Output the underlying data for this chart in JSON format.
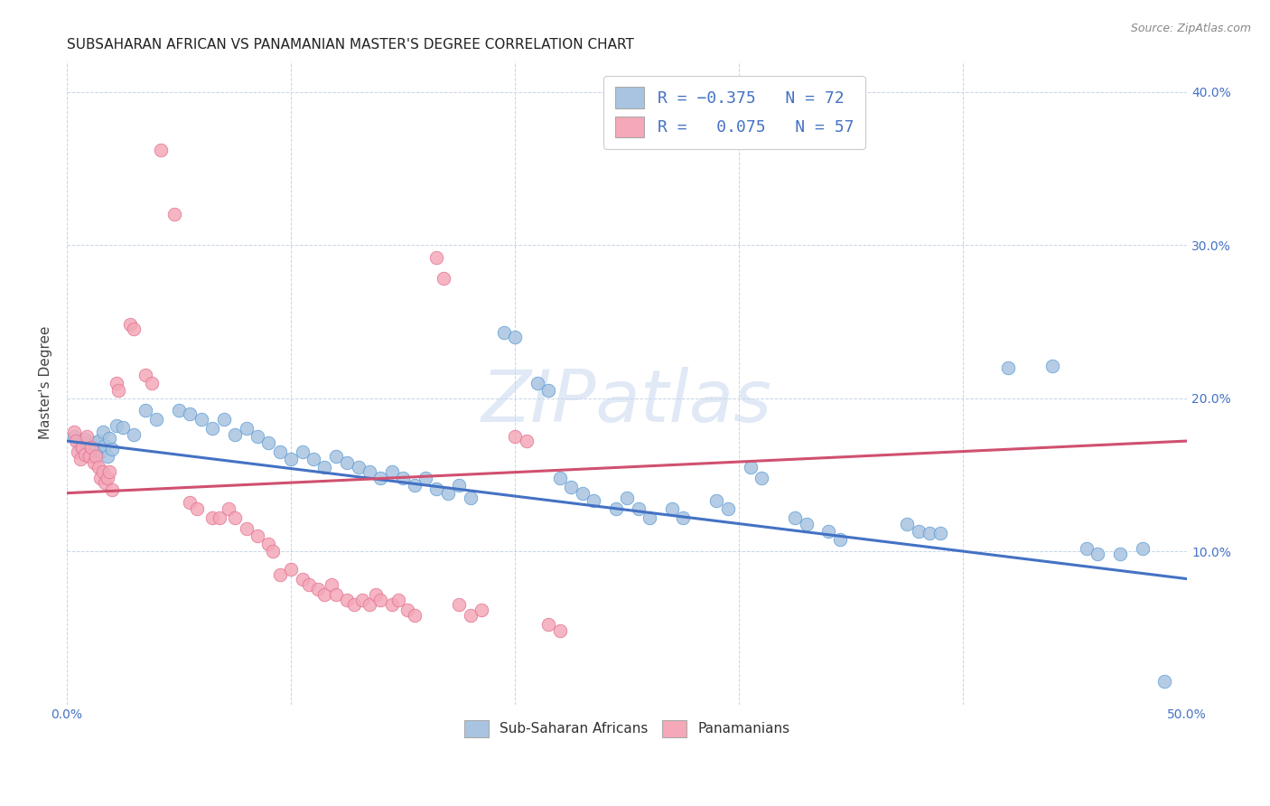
{
  "title": "SUBSAHARAN AFRICAN VS PANAMANIAN MASTER'S DEGREE CORRELATION CHART",
  "source": "Source: ZipAtlas.com",
  "ylabel": "Master's Degree",
  "xlim": [
    0.0,
    0.5
  ],
  "ylim": [
    0.0,
    0.42
  ],
  "blue_color": "#a8c4e0",
  "pink_color": "#f4a8b8",
  "blue_edge_color": "#5b9bd5",
  "pink_edge_color": "#e07090",
  "blue_line_color": "#4472c4",
  "pink_line_color": "#d05070",
  "blue_line": [
    [
      0.0,
      0.172
    ],
    [
      0.5,
      0.082
    ]
  ],
  "pink_line": [
    [
      0.0,
      0.138
    ],
    [
      0.5,
      0.172
    ]
  ],
  "watermark": "ZIPatlas",
  "legend_label_blue": "Sub-Saharan Africans",
  "legend_label_pink": "Panamanians",
  "legend_r1_pre": "R = ",
  "legend_r1_val": "-0.375",
  "legend_r1_n": "N = 72",
  "legend_r2_pre": "R =  ",
  "legend_r2_val": "0.075",
  "legend_r2_n": "N = 57",
  "title_fontsize": 11,
  "axis_color": "#4472c4",
  "grid_color": "#c8d4e8",
  "background_color": "#ffffff",
  "blue_scatter": [
    [
      0.003,
      0.175
    ],
    [
      0.005,
      0.172
    ],
    [
      0.006,
      0.168
    ],
    [
      0.007,
      0.17
    ],
    [
      0.008,
      0.173
    ],
    [
      0.009,
      0.165
    ],
    [
      0.01,
      0.168
    ],
    [
      0.011,
      0.163
    ],
    [
      0.012,
      0.171
    ],
    [
      0.013,
      0.167
    ],
    [
      0.014,
      0.172
    ],
    [
      0.015,
      0.165
    ],
    [
      0.016,
      0.178
    ],
    [
      0.017,
      0.169
    ],
    [
      0.018,
      0.162
    ],
    [
      0.019,
      0.174
    ],
    [
      0.02,
      0.167
    ],
    [
      0.022,
      0.182
    ],
    [
      0.025,
      0.181
    ],
    [
      0.03,
      0.176
    ],
    [
      0.035,
      0.192
    ],
    [
      0.04,
      0.186
    ],
    [
      0.05,
      0.192
    ],
    [
      0.055,
      0.19
    ],
    [
      0.06,
      0.186
    ],
    [
      0.065,
      0.18
    ],
    [
      0.07,
      0.186
    ],
    [
      0.075,
      0.176
    ],
    [
      0.08,
      0.18
    ],
    [
      0.085,
      0.175
    ],
    [
      0.09,
      0.171
    ],
    [
      0.095,
      0.165
    ],
    [
      0.1,
      0.16
    ],
    [
      0.105,
      0.165
    ],
    [
      0.11,
      0.16
    ],
    [
      0.115,
      0.155
    ],
    [
      0.12,
      0.162
    ],
    [
      0.125,
      0.158
    ],
    [
      0.13,
      0.155
    ],
    [
      0.135,
      0.152
    ],
    [
      0.14,
      0.148
    ],
    [
      0.145,
      0.152
    ],
    [
      0.15,
      0.148
    ],
    [
      0.155,
      0.143
    ],
    [
      0.16,
      0.148
    ],
    [
      0.165,
      0.141
    ],
    [
      0.17,
      0.138
    ],
    [
      0.175,
      0.143
    ],
    [
      0.18,
      0.135
    ],
    [
      0.195,
      0.243
    ],
    [
      0.2,
      0.24
    ],
    [
      0.21,
      0.21
    ],
    [
      0.215,
      0.205
    ],
    [
      0.22,
      0.148
    ],
    [
      0.225,
      0.142
    ],
    [
      0.23,
      0.138
    ],
    [
      0.235,
      0.133
    ],
    [
      0.245,
      0.128
    ],
    [
      0.25,
      0.135
    ],
    [
      0.255,
      0.128
    ],
    [
      0.26,
      0.122
    ],
    [
      0.27,
      0.128
    ],
    [
      0.275,
      0.122
    ],
    [
      0.29,
      0.133
    ],
    [
      0.295,
      0.128
    ],
    [
      0.305,
      0.155
    ],
    [
      0.31,
      0.148
    ],
    [
      0.325,
      0.122
    ],
    [
      0.33,
      0.118
    ],
    [
      0.34,
      0.113
    ],
    [
      0.345,
      0.108
    ],
    [
      0.375,
      0.118
    ],
    [
      0.38,
      0.113
    ],
    [
      0.385,
      0.112
    ],
    [
      0.39,
      0.112
    ],
    [
      0.42,
      0.22
    ],
    [
      0.44,
      0.221
    ],
    [
      0.455,
      0.102
    ],
    [
      0.46,
      0.098
    ],
    [
      0.47,
      0.098
    ],
    [
      0.48,
      0.102
    ],
    [
      0.49,
      0.015
    ]
  ],
  "pink_scatter": [
    [
      0.003,
      0.178
    ],
    [
      0.004,
      0.172
    ],
    [
      0.005,
      0.165
    ],
    [
      0.006,
      0.16
    ],
    [
      0.007,
      0.168
    ],
    [
      0.008,
      0.163
    ],
    [
      0.009,
      0.175
    ],
    [
      0.01,
      0.162
    ],
    [
      0.011,
      0.168
    ],
    [
      0.012,
      0.158
    ],
    [
      0.013,
      0.162
    ],
    [
      0.014,
      0.155
    ],
    [
      0.015,
      0.148
    ],
    [
      0.016,
      0.152
    ],
    [
      0.017,
      0.145
    ],
    [
      0.018,
      0.148
    ],
    [
      0.019,
      0.152
    ],
    [
      0.02,
      0.14
    ],
    [
      0.022,
      0.21
    ],
    [
      0.023,
      0.205
    ],
    [
      0.028,
      0.248
    ],
    [
      0.03,
      0.245
    ],
    [
      0.035,
      0.215
    ],
    [
      0.038,
      0.21
    ],
    [
      0.042,
      0.362
    ],
    [
      0.048,
      0.32
    ],
    [
      0.055,
      0.132
    ],
    [
      0.058,
      0.128
    ],
    [
      0.065,
      0.122
    ],
    [
      0.068,
      0.122
    ],
    [
      0.072,
      0.128
    ],
    [
      0.075,
      0.122
    ],
    [
      0.08,
      0.115
    ],
    [
      0.085,
      0.11
    ],
    [
      0.09,
      0.105
    ],
    [
      0.092,
      0.1
    ],
    [
      0.095,
      0.085
    ],
    [
      0.1,
      0.088
    ],
    [
      0.105,
      0.082
    ],
    [
      0.108,
      0.078
    ],
    [
      0.112,
      0.075
    ],
    [
      0.115,
      0.072
    ],
    [
      0.118,
      0.078
    ],
    [
      0.12,
      0.072
    ],
    [
      0.125,
      0.068
    ],
    [
      0.128,
      0.065
    ],
    [
      0.132,
      0.068
    ],
    [
      0.135,
      0.065
    ],
    [
      0.138,
      0.072
    ],
    [
      0.14,
      0.068
    ],
    [
      0.145,
      0.065
    ],
    [
      0.148,
      0.068
    ],
    [
      0.152,
      0.062
    ],
    [
      0.155,
      0.058
    ],
    [
      0.165,
      0.292
    ],
    [
      0.168,
      0.278
    ],
    [
      0.175,
      0.065
    ],
    [
      0.18,
      0.058
    ],
    [
      0.185,
      0.062
    ],
    [
      0.2,
      0.175
    ],
    [
      0.205,
      0.172
    ],
    [
      0.215,
      0.052
    ],
    [
      0.22,
      0.048
    ]
  ]
}
